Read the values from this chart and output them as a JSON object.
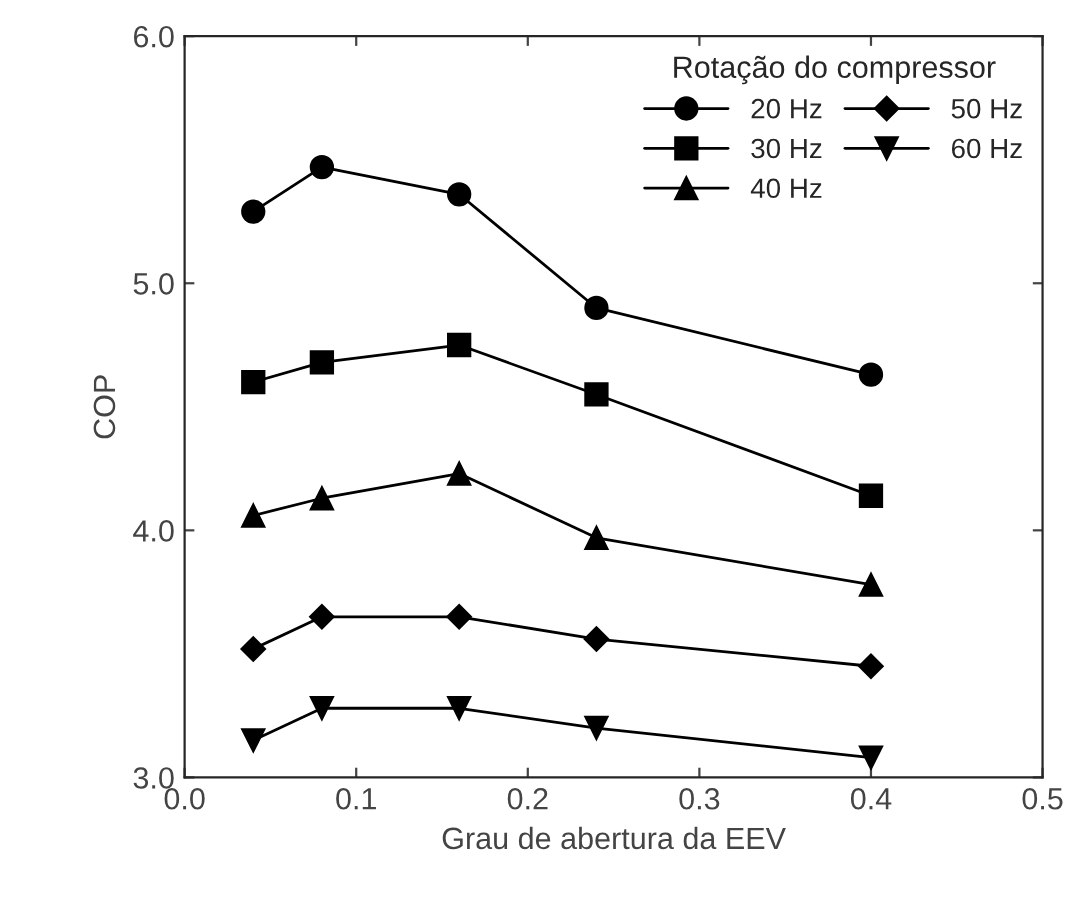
{
  "chart_data": {
    "type": "line",
    "xlabel": "Grau de abertura da EEV",
    "ylabel": "COP",
    "legend_title": "Rotação do compressor",
    "legend": "top right",
    "grid": false,
    "xlim": [
      0,
      0.5
    ],
    "ylim": [
      3,
      6
    ],
    "xticks": [
      {
        "value": 0,
        "label": "0.0"
      },
      0.1,
      0.2,
      0.3,
      0.4,
      0.5
    ],
    "yticks": [
      {
        "value": 3,
        "label": "3.0"
      },
      {
        "value": 4,
        "label": "4.0"
      },
      {
        "value": 5,
        "label": "5.0"
      },
      {
        "value": 6,
        "label": "6.0"
      }
    ],
    "x": [
      0.04,
      0.08,
      0.16,
      0.24,
      0.4
    ],
    "series": [
      {
        "name": "20 Hz",
        "color": "#000000",
        "marker": "circle",
        "values": [
          5.29,
          5.47,
          5.36,
          4.9,
          4.63
        ]
      },
      {
        "name": "30 Hz",
        "color": "#000000",
        "marker": "square",
        "values": [
          4.6,
          4.68,
          4.75,
          4.55,
          4.14
        ]
      },
      {
        "name": "40 Hz",
        "color": "#000000",
        "marker": "triangle",
        "values": [
          4.06,
          4.13,
          4.23,
          3.97,
          3.78
        ]
      },
      {
        "name": "50 Hz",
        "color": "#000000",
        "marker": "diamond",
        "values": [
          3.52,
          3.65,
          3.65,
          3.56,
          3.45
        ]
      },
      {
        "name": "60 Hz",
        "color": "#000000",
        "marker": "triangle_down",
        "values": [
          3.15,
          3.28,
          3.28,
          3.2,
          3.08
        ]
      }
    ]
  }
}
